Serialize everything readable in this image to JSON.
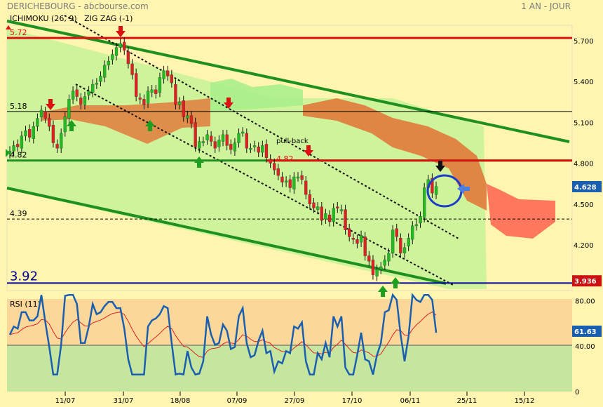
{
  "header": {
    "title": "DERICHEBOURG - abcbourse.com",
    "period": "1 AN - JOUR",
    "indicators": "ICHIMOKU (26, 9)   ZIG ZAG (-1)"
  },
  "colors": {
    "background": "#FFF5B0",
    "bull_candle": "#22BB22",
    "bear_candle": "#DD2222",
    "channel": "#1F8F1F",
    "cloud_bull": "#A8F08A",
    "cloud_bear": "#E07A3C",
    "resistance": "#DD1111",
    "support": "#000099",
    "rsi_line": "#1A5FAF",
    "rsi_signal": "#DD2222"
  },
  "chart_data": [
    {
      "type": "candlestick",
      "title": "DERICHEBOURG",
      "x_ticks": [
        "11/07",
        "31/07",
        "18/08",
        "07/09",
        "27/09",
        "17/10",
        "06/11",
        "25/11",
        "15/12"
      ],
      "y_ticks": [
        "5.700",
        "5.400",
        "5.100",
        "4.800",
        "4.500",
        "4.200"
      ],
      "ylim": [
        3.9,
        5.85
      ],
      "levels": [
        {
          "label": "5.72",
          "value": 5.72,
          "color": "#DD1111"
        },
        {
          "label": "5.18",
          "value": 5.18,
          "color": "#000000"
        },
        {
          "label": "4.82",
          "value": 4.82,
          "color": "#1F8F1F"
        },
        {
          "label": "4.39",
          "value": 4.39,
          "color": "#000000",
          "dashed": true
        },
        {
          "label": "3.92",
          "value": 3.92,
          "color": "#000099"
        }
      ],
      "annotations": {
        "pullback": "pull-back",
        "pullback_value": "4.82"
      },
      "price_tags": [
        {
          "label": "4.628",
          "value": 4.628,
          "color": "#1A5FAF"
        },
        {
          "label": "3.936",
          "value": 3.936,
          "color": "#CC1111"
        }
      ],
      "closes": [
        4.89,
        4.93,
        4.92,
        5.0,
        5.04,
        4.99,
        5.07,
        5.13,
        5.19,
        5.13,
        5.07,
        4.95,
        4.91,
        5.02,
        5.14,
        5.27,
        5.33,
        5.29,
        5.23,
        5.29,
        5.33,
        5.38,
        5.39,
        5.44,
        5.52,
        5.55,
        5.6,
        5.65,
        5.68,
        5.63,
        5.53,
        5.45,
        5.29,
        5.27,
        5.23,
        5.33,
        5.34,
        5.31,
        5.43,
        5.48,
        5.44,
        5.39,
        5.23,
        5.25,
        5.14,
        5.15,
        5.09,
        4.92,
        4.96,
        4.96,
        5.01,
        4.96,
        4.91,
        4.97,
        5.01,
        4.93,
        4.9,
        4.95,
        5.02,
        5.03,
        4.91,
        4.91,
        4.93,
        4.88,
        4.93,
        4.84,
        4.8,
        4.75,
        4.71,
        4.66,
        4.67,
        4.62,
        4.7,
        4.7,
        4.68,
        4.57,
        4.5,
        4.47,
        4.48,
        4.38,
        4.43,
        4.37,
        4.47,
        4.47,
        4.46,
        4.31,
        4.26,
        4.24,
        4.21,
        4.27,
        4.12,
        4.08,
        3.98,
        4.02,
        4.04,
        4.09,
        4.14,
        4.31,
        4.26,
        4.14,
        4.18,
        4.25,
        4.34,
        4.35,
        4.41,
        4.62,
        4.68,
        4.58,
        4.63
      ],
      "rsi": {
        "title": "RSI (11)",
        "y_ticks": [
          "80.00",
          "40.00",
          "0"
        ],
        "last_value": "61.63",
        "threshold": 50
      }
    }
  ]
}
